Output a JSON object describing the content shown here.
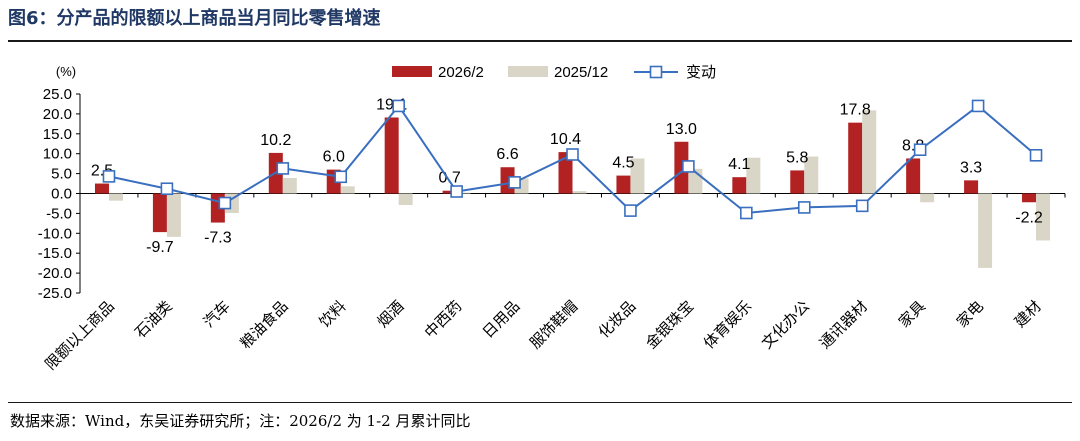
{
  "figure": {
    "title": "图6：分产品的限额以上商品当月同比零售增速",
    "source": "数据来源：Wind，东吴证券研究所；注：2026/2 为 1-2 月累计同比"
  },
  "colors": {
    "title": "#1f3864",
    "series_2026": "#b22222",
    "series_2025": "#d9d6c8",
    "series_change": "#3a6fbf"
  },
  "chart_data": {
    "type": "bar",
    "ylabel": "(%)",
    "ylim": [
      -25,
      25
    ],
    "ytick_step": 5,
    "yticks": [
      "25.0",
      "20.0",
      "15.0",
      "10.0",
      "5.0",
      "0.0",
      "-5.0",
      "-10.0",
      "-15.0",
      "-20.0",
      "-25.0"
    ],
    "legend_position": "top-center",
    "grid": false,
    "categories": [
      "限额以上商品",
      "石油类",
      "汽车",
      "粮油食品",
      "饮料",
      "烟酒",
      "中西药",
      "日用品",
      "服饰鞋帽",
      "化妆品",
      "金银珠宝",
      "体育娱乐",
      "文化办公",
      "通讯器材",
      "家具",
      "家电",
      "建材"
    ],
    "series": [
      {
        "name": "2026/2",
        "kind": "bar",
        "values": [
          2.5,
          -9.7,
          -7.3,
          10.2,
          6.0,
          19.1,
          0.7,
          6.6,
          10.4,
          4.5,
          13.0,
          4.1,
          5.8,
          17.8,
          8.8,
          3.3,
          -2.2
        ],
        "labels": [
          "2.5",
          "-9.7",
          "-7.3",
          "10.2",
          "6.0",
          "19.1",
          "0.7",
          "6.6",
          "10.4",
          "4.5",
          "13.0",
          "4.1",
          "5.8",
          "17.8",
          "8.8",
          "3.3",
          "-2.2"
        ]
      },
      {
        "name": "2025/12",
        "kind": "bar",
        "values": [
          -1.8,
          -10.9,
          -4.9,
          3.9,
          1.8,
          -2.9,
          0.2,
          3.8,
          0.6,
          8.8,
          6.2,
          9.0,
          9.3,
          20.9,
          -2.2,
          -18.7,
          -11.8
        ]
      },
      {
        "name": "变动",
        "kind": "line",
        "values": [
          4.3,
          1.2,
          -2.4,
          6.3,
          4.2,
          22.0,
          0.5,
          2.8,
          9.8,
          -4.3,
          6.8,
          -4.9,
          -3.5,
          -3.1,
          11.0,
          22.0,
          9.6
        ]
      }
    ]
  }
}
